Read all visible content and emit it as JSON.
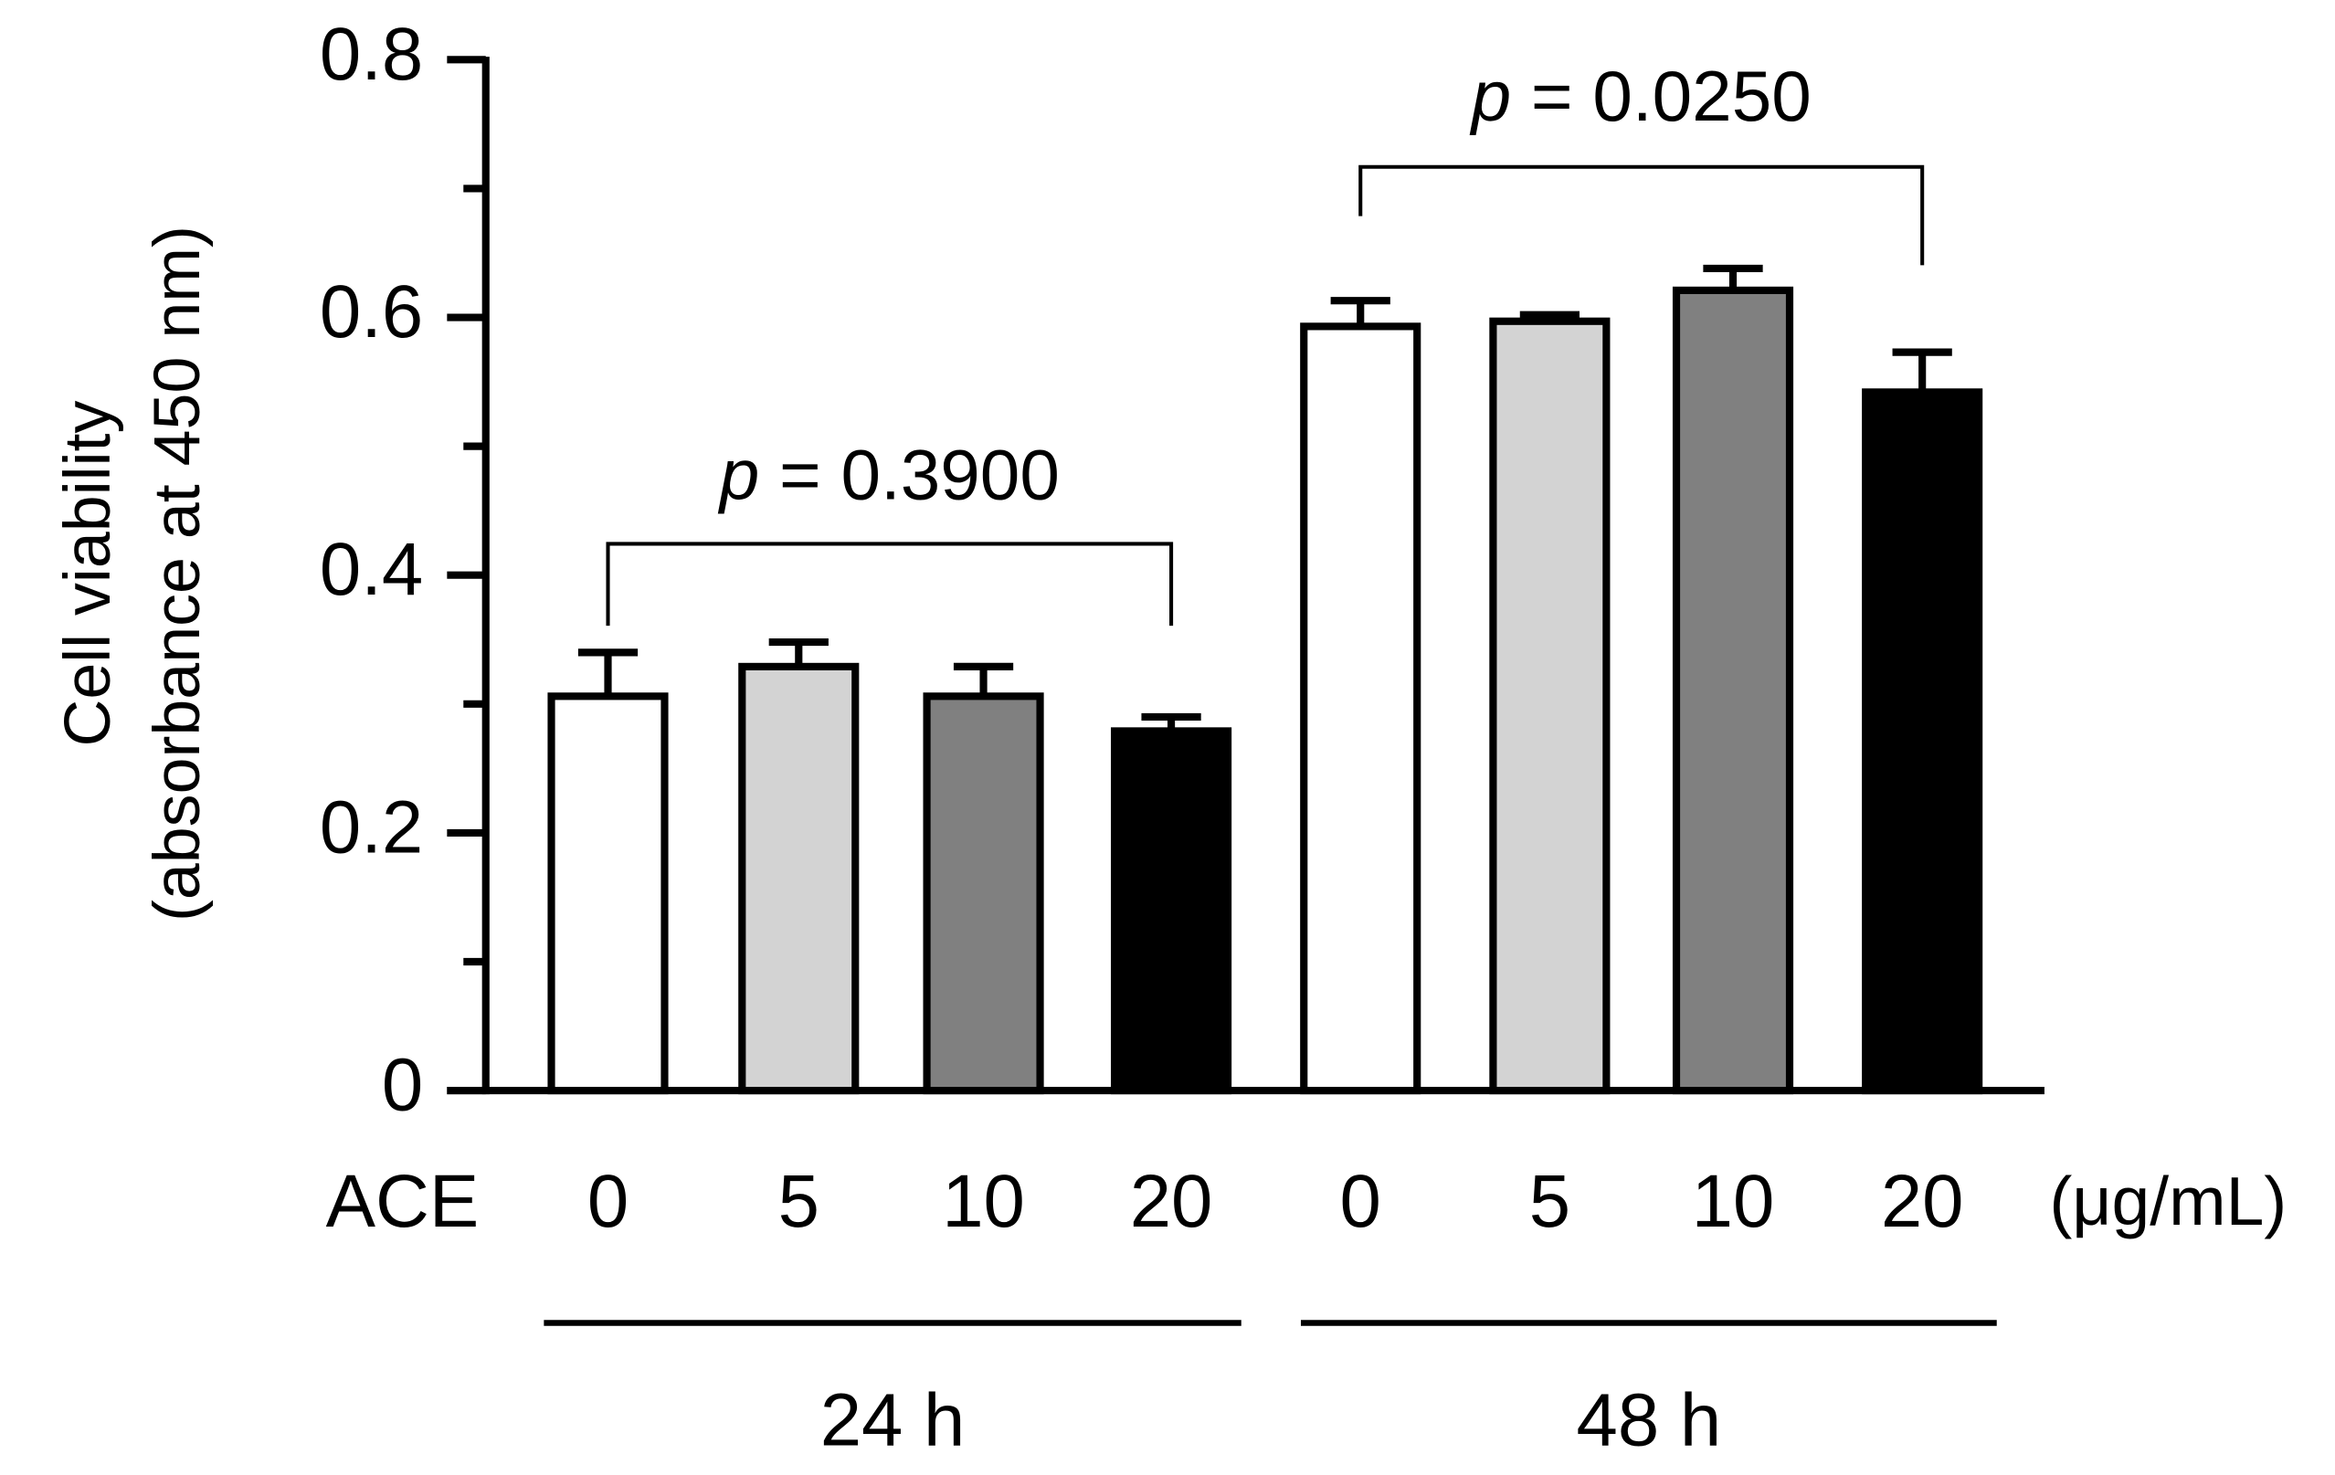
{
  "chart_data": {
    "type": "bar",
    "ylabel": [
      "Cell viability",
      "(absorbance at 450 nm)"
    ],
    "xlabel": "ACE",
    "unit": "(μg/mL)",
    "categories": [
      "0",
      "5",
      "10",
      "20",
      "0",
      "5",
      "10",
      "20"
    ],
    "groups": [
      "24 h",
      "48 h"
    ],
    "values": [
      0.306,
      0.329,
      0.306,
      0.279,
      0.593,
      0.597,
      0.621,
      0.542
    ],
    "errors": [
      0.034,
      0.019,
      0.023,
      0.011,
      0.02,
      0.005,
      0.017,
      0.031
    ],
    "colors": [
      "#ffffff",
      "#d3d3d3",
      "#808080",
      "#000000",
      "#ffffff",
      "#d3d3d3",
      "#808080",
      "#000000"
    ],
    "ylim": [
      0,
      0.8
    ],
    "yticks": [
      0,
      0.2,
      0.4,
      0.6,
      0.8
    ],
    "yminorticks": [
      0.1,
      0.3,
      0.5,
      0.7
    ],
    "annotations": [
      {
        "symbol": "p",
        "text": "= 0.3900"
      },
      {
        "symbol": "p",
        "text": "= 0.0250"
      }
    ]
  }
}
